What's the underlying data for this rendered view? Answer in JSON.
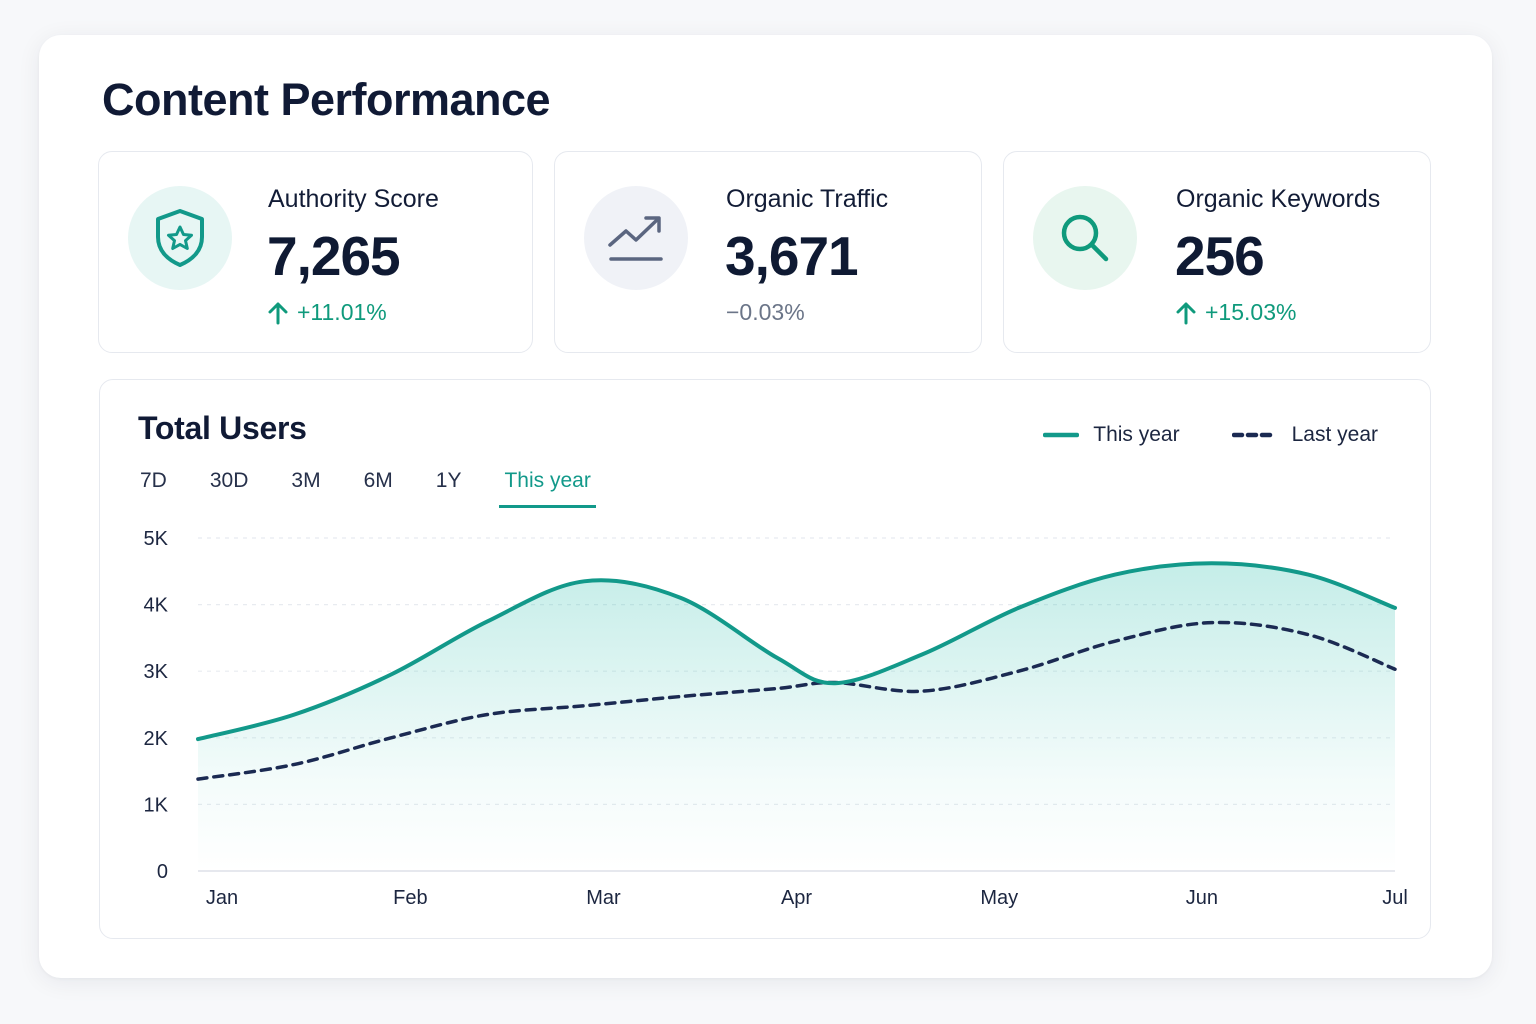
{
  "title": "Content Performance",
  "cards": [
    {
      "label": "Authority Score",
      "value": "7,265",
      "delta": "+11.01%",
      "trend": "up",
      "icon": "shield-star-icon"
    },
    {
      "label": "Organic Traffic",
      "value": "3,671",
      "delta": "−0.03%",
      "trend": "neutral",
      "icon": "trending-up-chart-icon"
    },
    {
      "label": "Organic Keywords",
      "value": "256",
      "delta": "+15.03%",
      "trend": "up",
      "icon": "search-icon"
    }
  ],
  "chart_card": {
    "title": "Total Users",
    "tabs": [
      "7D",
      "30D",
      "3M",
      "6M",
      "1Y",
      "This year"
    ],
    "active_tab": "This year",
    "legend": {
      "this_year": "This year",
      "last_year": "Last year"
    }
  },
  "colors": {
    "accent": "#12998a",
    "navy": "#1b2a52",
    "up": "#0f9a7c",
    "neutral": "#6b7588"
  },
  "chart_data": {
    "type": "line",
    "title": "Total Users",
    "x": [
      "Jan",
      "Feb",
      "Mar",
      "Apr",
      "May",
      "Jun",
      "Jul"
    ],
    "x_numeric": [
      0,
      1.1,
      2.1,
      3.1,
      4.15,
      5.2,
      6.2
    ],
    "ylim": [
      0,
      5000
    ],
    "yticks": [
      0,
      1000,
      2000,
      3000,
      4000,
      5000
    ],
    "ytick_labels": [
      "0",
      "1K",
      "2K",
      "3K",
      "4K",
      "5K"
    ],
    "grid": true,
    "legend_position": "top-right",
    "series": [
      {
        "name": "This year",
        "style": "solid",
        "filled": true,
        "points": [
          [
            0,
            1980
          ],
          [
            0.5,
            2350
          ],
          [
            1.0,
            2950
          ],
          [
            1.5,
            3750
          ],
          [
            2.0,
            4350
          ],
          [
            2.5,
            4100
          ],
          [
            3.0,
            3200
          ],
          [
            3.3,
            2820
          ],
          [
            3.75,
            3250
          ],
          [
            4.25,
            3950
          ],
          [
            4.75,
            4450
          ],
          [
            5.25,
            4620
          ],
          [
            5.75,
            4450
          ],
          [
            6.2,
            3950
          ]
        ]
      },
      {
        "name": "Last year",
        "style": "dashed",
        "filled": false,
        "points": [
          [
            0,
            1380
          ],
          [
            0.5,
            1600
          ],
          [
            1.0,
            2000
          ],
          [
            1.5,
            2350
          ],
          [
            2.0,
            2480
          ],
          [
            2.5,
            2620
          ],
          [
            3.0,
            2740
          ],
          [
            3.3,
            2830
          ],
          [
            3.75,
            2700
          ],
          [
            4.25,
            3000
          ],
          [
            4.75,
            3450
          ],
          [
            5.25,
            3730
          ],
          [
            5.75,
            3550
          ],
          [
            6.2,
            3030
          ]
        ]
      }
    ]
  }
}
